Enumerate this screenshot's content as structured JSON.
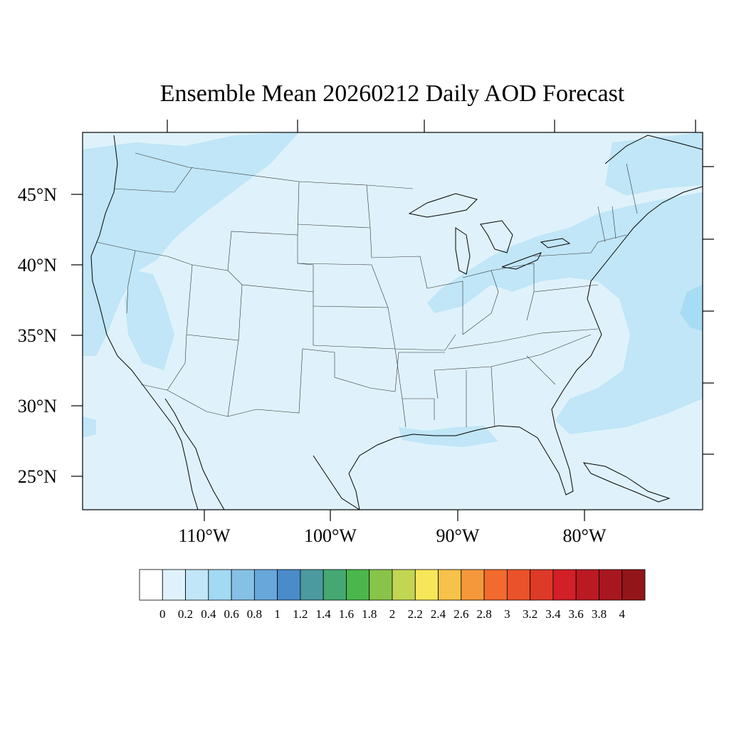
{
  "title": "Ensemble Mean 20260212 Daily AOD Forecast",
  "map": {
    "lat_labels": [
      "45°N",
      "40°N",
      "35°N",
      "30°N",
      "25°N"
    ],
    "lon_labels": [
      "110°W",
      "100°W",
      "90°W",
      "80°W"
    ],
    "background_color": "#dff2fb",
    "plume_colors": [
      "#c0e6f7",
      "#a6dcf4"
    ],
    "line_color": "#000000",
    "features": [
      "coastline",
      "state-boundaries",
      "great-lakes"
    ]
  },
  "colorbar": {
    "labels": [
      "0",
      "0.2",
      "0.4",
      "0.6",
      "0.8",
      "1",
      "1.2",
      "1.4",
      "1.6",
      "1.8",
      "2",
      "2.2",
      "2.4",
      "2.6",
      "2.8",
      "3",
      "3.2",
      "3.4",
      "3.6",
      "3.8",
      "4"
    ],
    "colors": [
      "#ffffff",
      "#dff2fb",
      "#c0e6f7",
      "#a2d9f3",
      "#85c0e5",
      "#68a7da",
      "#4a8bc9",
      "#4a9a9f",
      "#45a872",
      "#4ab64b",
      "#88c44a",
      "#c3d653",
      "#f8e65a",
      "#f7c24a",
      "#f5983c",
      "#f26a2e",
      "#ea5229",
      "#dd3a28",
      "#d21f28",
      "#bb1a22",
      "#a8171f",
      "#921519"
    ]
  }
}
